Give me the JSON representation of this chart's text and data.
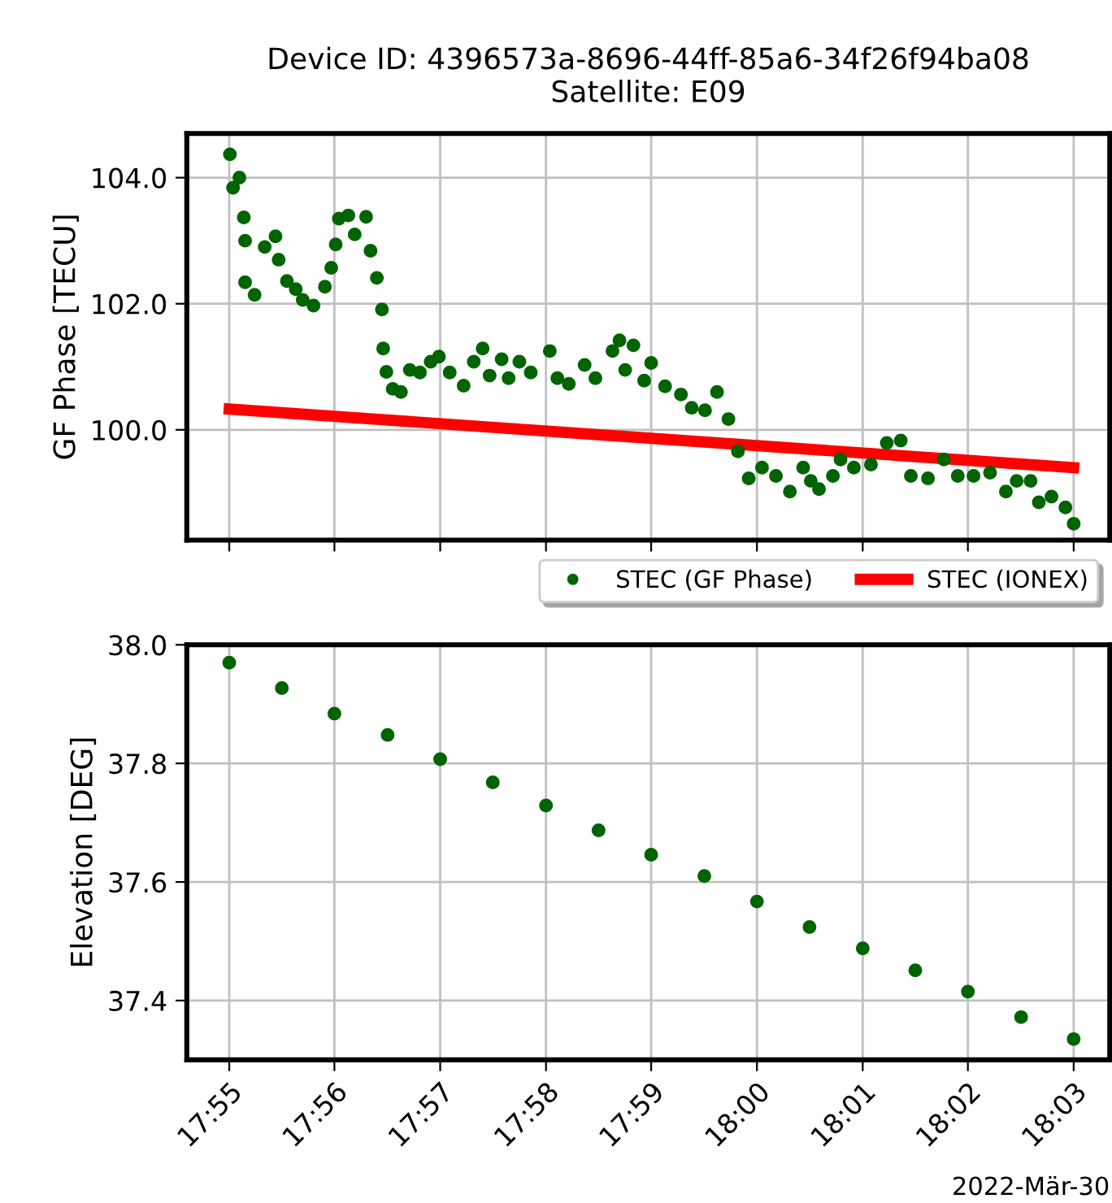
{
  "chart_data": [
    {
      "type": "scatter",
      "title": "Device ID: 4396573a-8696-44ff-85a6-34f26f94ba08\nSatellite: E09",
      "ylabel": "GF Phase [TECU]",
      "xlim": [
        17.91,
        18.0557
      ],
      "ylim": [
        98.25,
        104.7
      ],
      "xticks": [
        {
          "value": 17.9167,
          "label": null
        },
        {
          "value": 17.9333,
          "label": null
        },
        {
          "value": 17.95,
          "label": null
        },
        {
          "value": 17.9667,
          "label": null
        },
        {
          "value": 17.9833,
          "label": null
        },
        {
          "value": 18.0,
          "label": null
        },
        {
          "value": 18.0167,
          "label": null
        },
        {
          "value": 18.0333,
          "label": null
        },
        {
          "value": 18.05,
          "label": null
        }
      ],
      "yticks": [
        {
          "value": 100,
          "label": "100.0"
        },
        {
          "value": 102,
          "label": "102.0"
        },
        {
          "value": 104,
          "label": "104.0"
        }
      ],
      "tick_labels": "y",
      "grid": true,
      "legend": "bottom right",
      "series": [
        {
          "name": "STEC (GF Phase)",
          "marker": "circle",
          "color": "#006400",
          "x": [
            17.9168,
            17.9173,
            17.9183,
            17.919,
            17.9192,
            17.9192,
            17.9207,
            17.9223,
            17.924,
            17.9245,
            17.9258,
            17.9272,
            17.9283,
            17.93,
            17.9318,
            17.9328,
            17.9335,
            17.934,
            17.9355,
            17.9365,
            17.9383,
            17.939,
            17.94,
            17.9408,
            17.941,
            17.9415,
            17.9425,
            17.9438,
            17.9452,
            17.9468,
            17.9485,
            17.9498,
            17.9515,
            17.9537,
            17.9553,
            17.9567,
            17.9578,
            17.9597,
            17.9608,
            17.9625,
            17.9643,
            17.9673,
            17.9685,
            17.9703,
            17.9728,
            17.9745,
            17.9772,
            17.9783,
            17.9792,
            17.9805,
            17.9822,
            17.9833,
            17.9855,
            17.988,
            17.9897,
            17.9918,
            17.9937,
            17.9955,
            17.997,
            17.9987,
            18.0008,
            18.003,
            18.0052,
            18.0073,
            18.0085,
            18.0098,
            18.012,
            18.0132,
            18.0153,
            18.018,
            18.0205,
            18.0227,
            18.0243,
            18.027,
            18.0295,
            18.0317,
            18.0342,
            18.0368,
            18.0393,
            18.041,
            18.0432,
            18.0445,
            18.0465,
            18.0487,
            18.05
          ],
          "values": [
            104.37,
            103.84,
            104.0,
            103.37,
            103.0,
            102.34,
            102.14,
            102.9,
            103.07,
            102.7,
            102.36,
            102.23,
            102.06,
            101.97,
            102.27,
            102.57,
            102.94,
            103.35,
            103.4,
            103.1,
            103.38,
            102.84,
            102.41,
            101.91,
            101.29,
            100.92,
            100.65,
            100.6,
            100.95,
            100.91,
            101.08,
            101.16,
            100.91,
            100.7,
            101.08,
            101.29,
            100.86,
            101.12,
            100.82,
            101.08,
            100.91,
            101.25,
            100.82,
            100.73,
            101.03,
            100.82,
            101.25,
            101.42,
            100.95,
            101.34,
            100.78,
            101.06,
            100.69,
            100.56,
            100.35,
            100.31,
            100.6,
            100.17,
            99.66,
            99.23,
            99.4,
            99.27,
            99.02,
            99.4,
            99.19,
            99.06,
            99.27,
            99.53,
            99.4,
            99.45,
            99.79,
            99.83,
            99.27,
            99.23,
            99.53,
            99.27,
            99.27,
            99.32,
            99.02,
            99.19,
            99.19,
            98.85,
            98.94,
            98.77,
            98.51
          ]
        },
        {
          "name": "STEC (IONEX)",
          "type": "line",
          "color": "#ff0000",
          "x": [
            17.9167,
            18.05
          ],
          "values": [
            100.33,
            99.4
          ]
        }
      ]
    },
    {
      "type": "scatter",
      "ylabel": "Elevation [DEG]",
      "annotations": [
        "2022-Mär-30"
      ],
      "xlim": [
        17.91,
        18.0557
      ],
      "ylim": [
        37.3,
        38.0
      ],
      "xticks": [
        {
          "value": 17.9167,
          "label": "17:55"
        },
        {
          "value": 17.9333,
          "label": "17:56"
        },
        {
          "value": 17.95,
          "label": "17:57"
        },
        {
          "value": 17.9667,
          "label": "17:58"
        },
        {
          "value": 17.9833,
          "label": "17:59"
        },
        {
          "value": 18.0,
          "label": "18:00"
        },
        {
          "value": 18.0167,
          "label": "18:01"
        },
        {
          "value": 18.0333,
          "label": "18:02"
        },
        {
          "value": 18.05,
          "label": "18:03"
        }
      ],
      "yticks": [
        {
          "value": 37.4,
          "label": "37.4"
        },
        {
          "value": 37.6,
          "label": "37.6"
        },
        {
          "value": 37.8,
          "label": "37.8"
        },
        {
          "value": 38.0,
          "label": "38.0"
        }
      ],
      "grid": true,
      "marker": "circle",
      "series": [
        {
          "color": "#006400",
          "x": [
            17.9167,
            17.925,
            17.9333,
            17.9417,
            17.95,
            17.9583,
            17.9667,
            17.975,
            17.9833,
            17.9917,
            18.0,
            18.0083,
            18.0167,
            18.025,
            18.0333,
            18.0417,
            18.05
          ],
          "values": [
            37.97,
            37.927,
            37.884,
            37.848,
            37.807,
            37.768,
            37.729,
            37.687,
            37.646,
            37.61,
            37.567,
            37.524,
            37.488,
            37.451,
            37.415,
            37.372,
            37.335
          ]
        }
      ]
    }
  ]
}
